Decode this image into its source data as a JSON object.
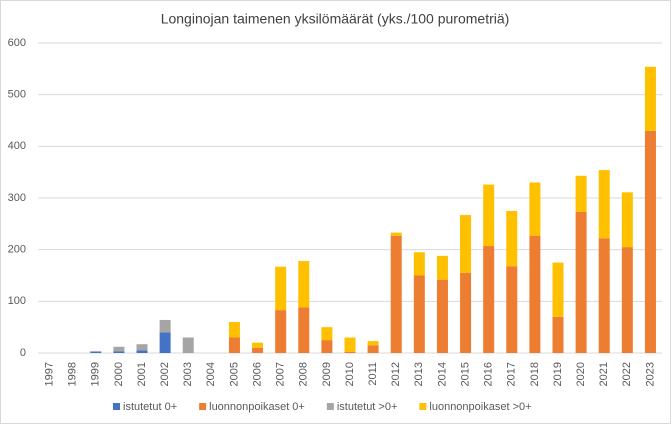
{
  "chart_data": {
    "type": "stacked_bar",
    "title": "Longinojan taimenen yksilömäärät (yks./100 purometriä)",
    "categories": [
      "1997",
      "1998",
      "1999",
      "2000",
      "2001",
      "2002",
      "2003",
      "2004",
      "2005",
      "2006",
      "2007",
      "2008",
      "2009",
      "2010",
      "2011",
      "2012",
      "2013",
      "2014",
      "2015",
      "2016",
      "2017",
      "2018",
      "2019",
      "2020",
      "2021",
      "2022",
      "2023"
    ],
    "series": [
      {
        "name": "istutetut 0+",
        "color": "#4472c4",
        "values": [
          0,
          0,
          3,
          3,
          5,
          40,
          0,
          0,
          0,
          0,
          0,
          0,
          0,
          0,
          0,
          0,
          0,
          0,
          0,
          0,
          0,
          0,
          0,
          0,
          0,
          0,
          0
        ]
      },
      {
        "name": "luonnonpoikaset 0+",
        "color": "#ed7d31",
        "values": [
          0,
          0,
          0,
          0,
          0,
          0,
          0,
          0,
          30,
          10,
          83,
          88,
          25,
          2,
          15,
          227,
          150,
          142,
          155,
          207,
          168,
          227,
          70,
          273,
          222,
          205,
          430
        ]
      },
      {
        "name": "istutetut >0+",
        "color": "#a5a5a5",
        "values": [
          0,
          0,
          0,
          9,
          12,
          24,
          30,
          0,
          0,
          0,
          0,
          0,
          0,
          0,
          0,
          0,
          0,
          0,
          0,
          0,
          0,
          0,
          0,
          0,
          0,
          0,
          0
        ]
      },
      {
        "name": "luonnonpoikaset >0+",
        "color": "#ffc000",
        "values": [
          0,
          0,
          0,
          0,
          0,
          0,
          0,
          0,
          30,
          10,
          84,
          90,
          25,
          28,
          8,
          6,
          45,
          46,
          112,
          119,
          107,
          103,
          105,
          70,
          132,
          106,
          124
        ]
      }
    ],
    "ylim": [
      0,
      600
    ],
    "yticks": [
      0,
      100,
      200,
      300,
      400,
      500,
      600
    ],
    "grid": true,
    "legend": "bottom"
  }
}
